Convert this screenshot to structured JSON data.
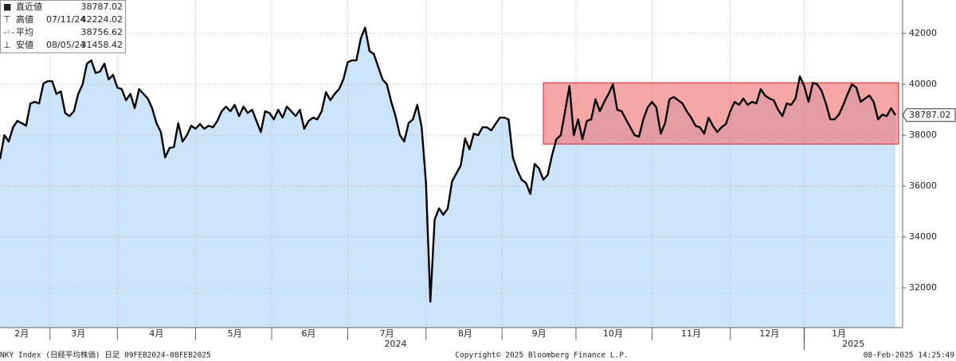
{
  "chart_data": {
    "type": "area-line",
    "line_color": "#000000",
    "fill_color": "#cce4fa",
    "grid": true,
    "ylim": [
      30437,
      43312
    ],
    "yticks": [
      32000,
      34000,
      36000,
      38000,
      40000,
      42000
    ],
    "values": [
      37060,
      38000,
      37750,
      38310,
      38560,
      38470,
      38370,
      39250,
      39310,
      39250,
      40030,
      40120,
      40120,
      39620,
      39720,
      38870,
      38750,
      38940,
      39620,
      40000,
      40810,
      40940,
      40440,
      40500,
      40810,
      40190,
      40370,
      39870,
      39810,
      39370,
      39620,
      39060,
      39810,
      39620,
      39440,
      39060,
      38470,
      38120,
      37120,
      37500,
      37530,
      38470,
      37750,
      38000,
      38370,
      38250,
      38440,
      38250,
      38370,
      38310,
      38560,
      38940,
      39120,
      38940,
      39190,
      38750,
      39120,
      38870,
      39000,
      38560,
      38120,
      38940,
      38870,
      38620,
      39000,
      38690,
      39120,
      38940,
      38750,
      39000,
      38250,
      38560,
      38690,
      38620,
      38940,
      39690,
      39370,
      39620,
      39810,
      40190,
      40870,
      40940,
      40940,
      41810,
      42224.02,
      41310,
      41190,
      40690,
      40190,
      40000,
      39310,
      38750,
      38000,
      37750,
      38470,
      38620,
      39190,
      38310,
      36120,
      31458.42,
      34690,
      35120,
      34870,
      35120,
      36190,
      36500,
      36810,
      37870,
      37440,
      38060,
      38000,
      38310,
      38310,
      38190,
      38440,
      38690,
      38690,
      38620,
      37120,
      36620,
      36250,
      36120,
      35690,
      36870,
      36690,
      36250,
      36440,
      37220,
      37840,
      38000,
      38940,
      39940,
      38000,
      38620,
      37840,
      38560,
      38620,
      39410,
      38940,
      39310,
      39620,
      40000,
      39000,
      38940,
      38620,
      38310,
      38000,
      37940,
      38620,
      39090,
      39310,
      39090,
      38060,
      38470,
      39410,
      39500,
      39370,
      39250,
      38940,
      38690,
      38370,
      38310,
      38060,
      38690,
      38370,
      38120,
      38310,
      38440,
      38940,
      39310,
      39190,
      39440,
      39190,
      39310,
      39250,
      39810,
      39560,
      39440,
      39370,
      39000,
      38750,
      39250,
      39190,
      39440,
      40310,
      39940,
      39310,
      40060,
      40000,
      39750,
      39250,
      38620,
      38620,
      38810,
      39190,
      39620,
      40000,
      39870,
      39310,
      39440,
      39560,
      39310,
      38620,
      38810,
      38750,
      39060,
      38787.02
    ],
    "categories": [
      null,
      null,
      null,
      null,
      null,
      "2月",
      null,
      null,
      null,
      null,
      null,
      null,
      null,
      null,
      null,
      null,
      null,
      null,
      "3月",
      null,
      null,
      null,
      null,
      null,
      null,
      null,
      null,
      null,
      null,
      null,
      null,
      null,
      null,
      null,
      null,
      null,
      "4月",
      null,
      null,
      null,
      null,
      null,
      null,
      null,
      null,
      null,
      null,
      null,
      null,
      null,
      null,
      null,
      null,
      null,
      "5月",
      null,
      null,
      null,
      null,
      null,
      null,
      null,
      null,
      null,
      null,
      null,
      null,
      null,
      null,
      null,
      null,
      "6月",
      null,
      null,
      null,
      null,
      null,
      null,
      null,
      null,
      null,
      null,
      null,
      null,
      null,
      null,
      null,
      null,
      null,
      "7月",
      null,
      null,
      null,
      null,
      null,
      null,
      null,
      null,
      null,
      null,
      null,
      null,
      null,
      null,
      null,
      null,
      null,
      "8月",
      null,
      null,
      null,
      null,
      null,
      null,
      null,
      null,
      null,
      null,
      null,
      null,
      null,
      null,
      null,
      null,
      "9月",
      null,
      null,
      null,
      null,
      null,
      null,
      null,
      null,
      null,
      null,
      null,
      null,
      null,
      null,
      null,
      null,
      "10月",
      null,
      null,
      null,
      null,
      null,
      null,
      null,
      null,
      null,
      null,
      null,
      null,
      null,
      null,
      null,
      null,
      null,
      "11月",
      null,
      null,
      null,
      null,
      null,
      null,
      null,
      null,
      null,
      null,
      null,
      null,
      null,
      null,
      null,
      null,
      null,
      "12月",
      null,
      null,
      null,
      null,
      null,
      null,
      null,
      null,
      null,
      null,
      null,
      null,
      null,
      null,
      null,
      "1月",
      null,
      null,
      null,
      null,
      null,
      null,
      null,
      null,
      null,
      null,
      null,
      null,
      null
    ],
    "years": [
      "2024",
      "2025"
    ],
    "highlight": {
      "color": "#f26b6b",
      "y_range": [
        37650,
        40060
      ],
      "start_index": 125
    },
    "last_value": 38787.02,
    "legend_box": [
      {
        "label": "直近値",
        "value": 38787.02
      },
      {
        "label": "高値",
        "date": "07/11/24",
        "value": 42224.02
      },
      {
        "label": "平均",
        "value": 38756.62
      },
      {
        "label": "安値",
        "date": "08/05/24",
        "value": 31458.42
      }
    ],
    "footer": {
      "left": "NKY Index (日経平均株価) 日足 09FEB2024-08FEB2025",
      "center": "Copyright© 2025 Bloomberg Finance L.P.",
      "right": "08-Feb-2025 14:25:49"
    }
  }
}
